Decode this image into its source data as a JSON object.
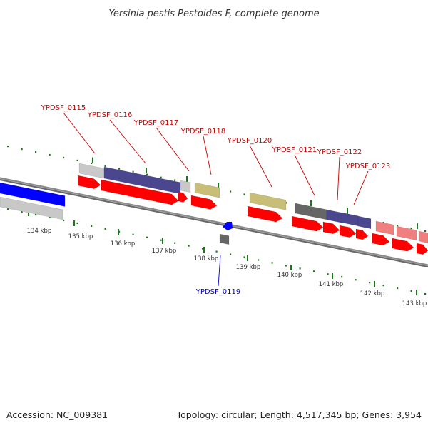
{
  "header": {
    "title": "Yersinia pestis Pestoides F, complete genome"
  },
  "footer": {
    "accession": "Accession: NC_009381",
    "summary": "Topology: circular; Length: 4,517,345 bp; Genes: 3,954"
  },
  "colors": {
    "cds": "#ff0000",
    "cds_light": "#f08080",
    "rna_gray": "#c8c8c8",
    "rna_dark": "#666666",
    "purple": "#4b478f",
    "tan": "#c8be78",
    "blue": "#0000ff",
    "tick_green": "#1a7a1a",
    "backbone": "#808080",
    "label_red": "#cc0000",
    "label_blue": "#0000cc"
  },
  "scale": {
    "ticks": [
      "134 kbp",
      "135 kbp",
      "136 kbp",
      "137 kbp",
      "138 kbp",
      "139 kbp",
      "140 kbp",
      "141 kbp",
      "142 kbp",
      "143 kbp"
    ]
  },
  "genes": [
    {
      "id": "YPDSF_0115",
      "strand": "forward"
    },
    {
      "id": "YPDSF_0116",
      "strand": "forward"
    },
    {
      "id": "YPDSF_0117",
      "strand": "forward"
    },
    {
      "id": "YPDSF_0118",
      "strand": "forward"
    },
    {
      "id": "YPDSF_0119",
      "strand": "reverse"
    },
    {
      "id": "YPDSF_0120",
      "strand": "forward"
    },
    {
      "id": "YPDSF_0121",
      "strand": "forward"
    },
    {
      "id": "YPDSF_0122",
      "strand": "forward"
    },
    {
      "id": "YPDSF_0123",
      "strand": "forward"
    }
  ]
}
